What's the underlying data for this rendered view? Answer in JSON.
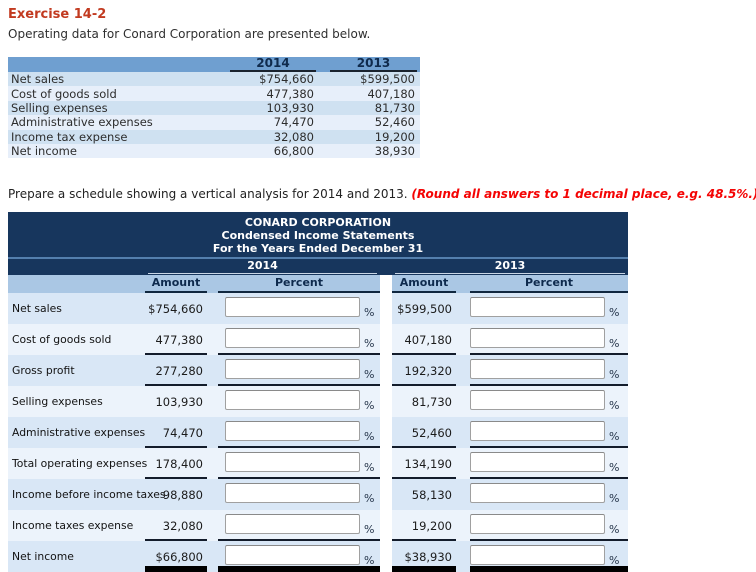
{
  "page": {
    "exercise_title": "Exercise 14-2",
    "intro": "Operating data for Conard Corporation are presented below.",
    "instruction": "Prepare a schedule showing a vertical analysis for 2014 and 2013. ",
    "instruction_note": "(Round all answers to 1 decimal place, e.g. 48.5%.)"
  },
  "colors": {
    "exercise_title_red": "#c23a20",
    "note_red": "#f40404",
    "navy_header": "#17365d",
    "table1_header_blue": "#6f9fd0",
    "column_header_blue": "#aac7e4",
    "row_blue_dark": "#d9e7f6",
    "row_blue_light": "#ecf3fb"
  },
  "data_table": {
    "years": [
      "2014",
      "2013"
    ],
    "rows": [
      {
        "label": "Net sales",
        "y2014": "$754,660",
        "y2013": "$599,500"
      },
      {
        "label": "Cost of goods sold",
        "y2014": "477,380",
        "y2013": "407,180"
      },
      {
        "label": "Selling expenses",
        "y2014": "103,930",
        "y2013": "81,730"
      },
      {
        "label": "Administrative expenses",
        "y2014": "74,470",
        "y2013": "52,460"
      },
      {
        "label": "Income tax expense",
        "y2014": "32,080",
        "y2013": "19,200"
      },
      {
        "label": "Net income",
        "y2014": "66,800",
        "y2013": "38,930"
      }
    ]
  },
  "analysis_table": {
    "title_lines": [
      "CONARD CORPORATION",
      "Condensed Income Statements",
      "For the Years Ended December 31"
    ],
    "years": [
      "2014",
      "2013"
    ],
    "col_headers": [
      "Amount",
      "Percent"
    ],
    "percent_suffix": "%",
    "rows": [
      {
        "label": "Net sales",
        "amount2014": "$754,660",
        "amount2013": "$599,500",
        "underline": false
      },
      {
        "label": "Cost of goods sold",
        "amount2014": "477,380",
        "amount2013": "407,180",
        "underline": true
      },
      {
        "label": "Gross profit",
        "amount2014": "277,280",
        "amount2013": "192,320",
        "underline": true
      },
      {
        "label": "Selling expenses",
        "amount2014": "103,930",
        "amount2013": "81,730",
        "underline": false
      },
      {
        "label": "Administrative expenses",
        "amount2014": "74,470",
        "amount2013": "52,460",
        "underline": true
      },
      {
        "label": "Total operating expenses",
        "amount2014": "178,400",
        "amount2013": "134,190",
        "underline": true
      },
      {
        "label": "Income before income taxes",
        "amount2014": "98,880",
        "amount2013": "58,130",
        "underline": false
      },
      {
        "label": "Income taxes expense",
        "amount2014": "32,080",
        "amount2013": "19,200",
        "underline": true
      },
      {
        "label": "Net income",
        "amount2014": "$66,800",
        "amount2013": "$38,930",
        "underline": "double"
      }
    ]
  }
}
